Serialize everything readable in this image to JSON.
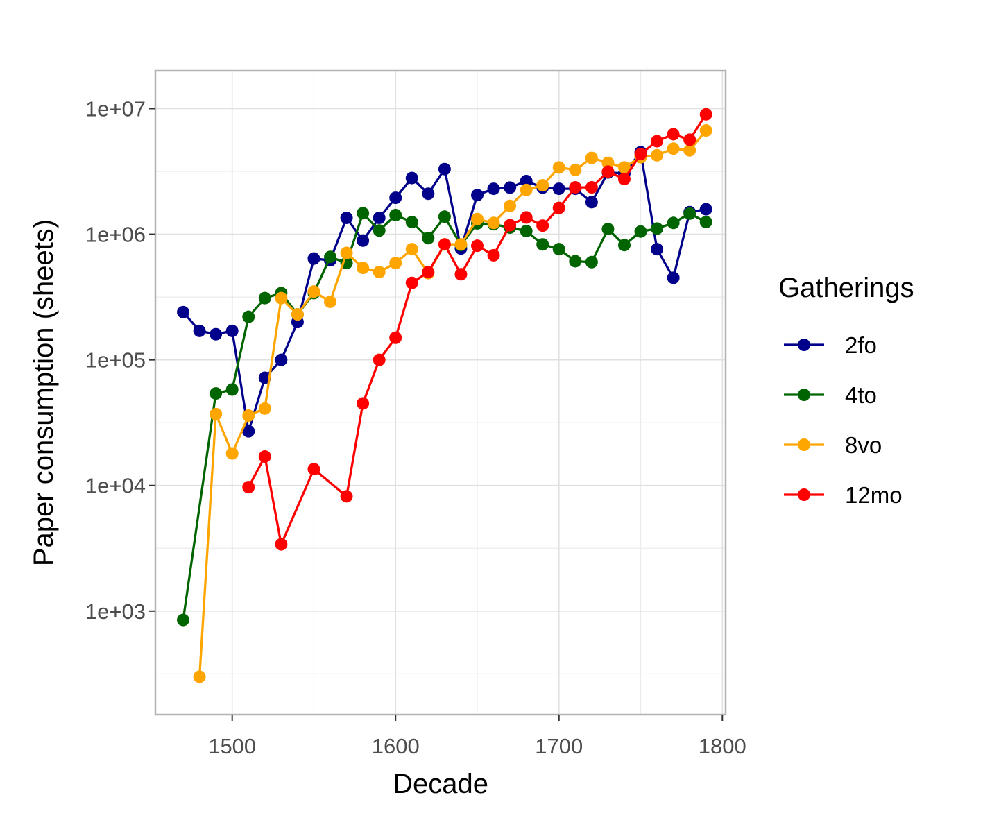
{
  "chart_data": {
    "type": "line",
    "title": "",
    "xlabel": "Decade",
    "ylabel": "Paper consumption (sheets)",
    "y_scale": "log10",
    "xlim": [
      1453,
      1802
    ],
    "ylim": [
      150,
      20000000
    ],
    "x_ticks": [
      1500,
      1600,
      1700,
      1800
    ],
    "x_tick_labels": [
      "1500",
      "1600",
      "1700",
      "1800"
    ],
    "y_ticks": [
      1000,
      10000,
      100000,
      1000000,
      10000000
    ],
    "y_tick_labels": [
      "1e+03",
      "1e+04",
      "1e+05",
      "1e+06",
      "1e+07"
    ],
    "grid": true,
    "legend": {
      "title": "Gatherings",
      "position": "right"
    },
    "series": [
      {
        "name": "2fo",
        "color": "#00008b",
        "x": [
          1470,
          1480,
          1490,
          1500,
          1510,
          1520,
          1530,
          1540,
          1550,
          1560,
          1570,
          1580,
          1590,
          1600,
          1610,
          1620,
          1630,
          1640,
          1650,
          1660,
          1670,
          1680,
          1690,
          1700,
          1710,
          1720,
          1730,
          1740,
          1750,
          1760,
          1770,
          1780,
          1790
        ],
        "y": [
          240000,
          170000,
          160000,
          170000,
          27000,
          72000,
          100000,
          200000,
          640000,
          620000,
          1350000,
          890000,
          1350000,
          1950000,
          2800000,
          2100000,
          3300000,
          770000,
          2050000,
          2300000,
          2350000,
          2650000,
          2350000,
          2300000,
          2300000,
          1800000,
          3100000,
          3050000,
          4500000,
          760000,
          450000,
          1500000,
          1580000
        ]
      },
      {
        "name": "4to",
        "color": "#006400",
        "x": [
          1470,
          1490,
          1500,
          1510,
          1520,
          1530,
          1540,
          1550,
          1560,
          1570,
          1580,
          1590,
          1600,
          1610,
          1620,
          1630,
          1640,
          1650,
          1660,
          1670,
          1680,
          1690,
          1700,
          1710,
          1720,
          1730,
          1740,
          1750,
          1760,
          1770,
          1780,
          1790
        ],
        "y": [
          850,
          54000,
          58000,
          220000,
          310000,
          340000,
          230000,
          340000,
          660000,
          590000,
          1470000,
          1070000,
          1420000,
          1250000,
          930000,
          1380000,
          820000,
          1220000,
          1200000,
          1130000,
          1060000,
          830000,
          760000,
          610000,
          600000,
          1100000,
          820000,
          1050000,
          1110000,
          1230000,
          1460000,
          1250000
        ]
      },
      {
        "name": "8vo",
        "color": "#ffa500",
        "x": [
          1480,
          1490,
          1500,
          1510,
          1520,
          1530,
          1540,
          1550,
          1560,
          1570,
          1580,
          1590,
          1600,
          1610,
          1620,
          1630,
          1640,
          1650,
          1660,
          1670,
          1680,
          1690,
          1700,
          1710,
          1720,
          1730,
          1740,
          1750,
          1760,
          1770,
          1780,
          1790
        ],
        "y": [
          300,
          37000,
          18000,
          36000,
          41000,
          310000,
          230000,
          350000,
          290000,
          710000,
          540000,
          500000,
          590000,
          760000,
          490000,
          830000,
          830000,
          1320000,
          1230000,
          1680000,
          2250000,
          2450000,
          3400000,
          3250000,
          4050000,
          3700000,
          3400000,
          4100000,
          4250000,
          4800000,
          4650000,
          6700000
        ]
      },
      {
        "name": "12mo",
        "color": "#ff0000",
        "x": [
          1510,
          1520,
          1530,
          1550,
          1570,
          1580,
          1590,
          1600,
          1610,
          1620,
          1630,
          1640,
          1650,
          1660,
          1670,
          1680,
          1690,
          1700,
          1710,
          1720,
          1730,
          1740,
          1750,
          1760,
          1770,
          1780,
          1790
        ],
        "y": [
          9700,
          17000,
          3400,
          13500,
          8200,
          45000,
          100000,
          150000,
          410000,
          500000,
          830000,
          480000,
          810000,
          680000,
          1180000,
          1360000,
          1170000,
          1620000,
          2360000,
          2360000,
          3150000,
          2750000,
          4350000,
          5500000,
          6250000,
          5650000,
          9000000
        ]
      }
    ]
  }
}
